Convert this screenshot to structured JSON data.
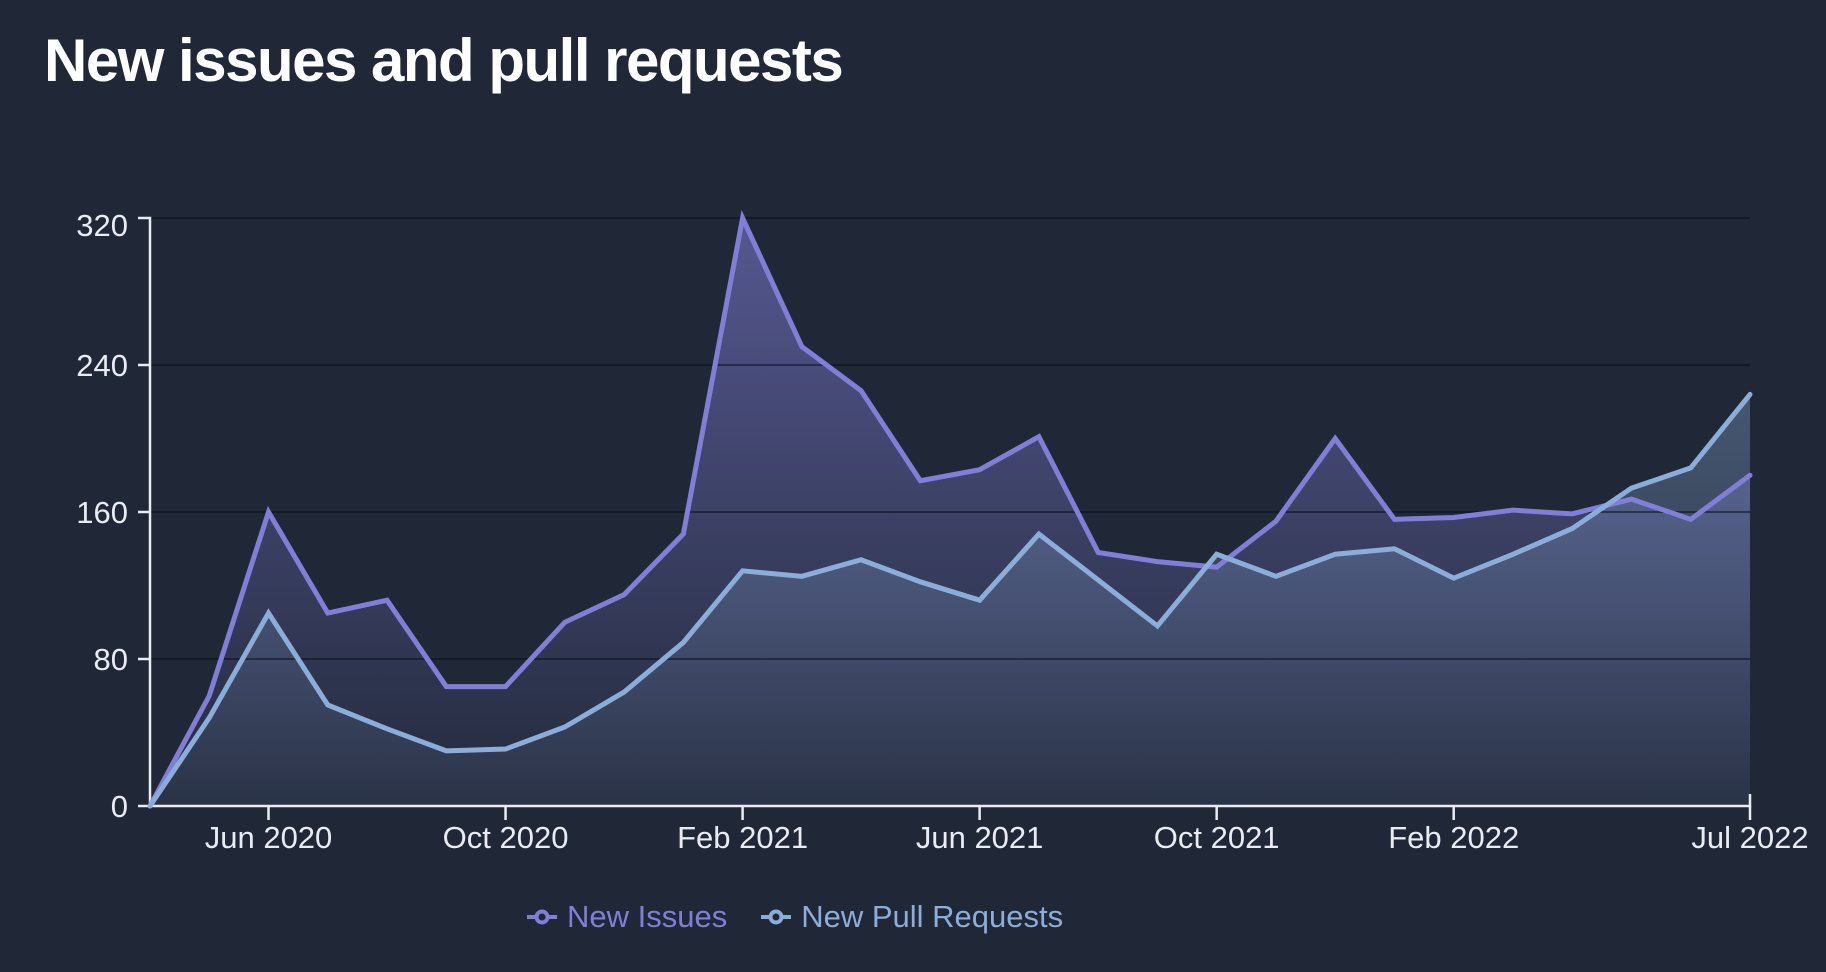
{
  "title": "New issues and pull requests",
  "legend": {
    "items": [
      "New Issues",
      "New Pull Requests"
    ]
  },
  "colors": {
    "background": "#202837",
    "axis": "#e9ecf3",
    "gridline": "rgba(10,16,28,0.55)",
    "new_issues": "#817ed8",
    "new_pull_requests": "#8badda"
  },
  "chart_data": {
    "type": "area",
    "title": "New issues and pull requests",
    "x": [
      "Apr 2020",
      "May 2020",
      "Jun 2020",
      "Jul 2020",
      "Aug 2020",
      "Sep 2020",
      "Oct 2020",
      "Nov 2020",
      "Dec 2020",
      "Jan 2021",
      "Feb 2021",
      "Mar 2021",
      "Apr 2021",
      "May 2021",
      "Jun 2021",
      "Jul 2021",
      "Aug 2021",
      "Sep 2021",
      "Oct 2021",
      "Nov 2021",
      "Dec 2021",
      "Jan 2022",
      "Feb 2022",
      "Mar 2022",
      "Apr 2022",
      "May 2022",
      "Jun 2022",
      "Jul 2022"
    ],
    "series": [
      {
        "name": "New Issues",
        "color": "#817ed8",
        "values": [
          0,
          60,
          160,
          105,
          112,
          65,
          65,
          100,
          115,
          148,
          320,
          250,
          226,
          177,
          183,
          201,
          138,
          133,
          130,
          155,
          200,
          156,
          157,
          161,
          159,
          167,
          156,
          180
        ]
      },
      {
        "name": "New Pull Requests",
        "color": "#8badda",
        "values": [
          0,
          48,
          105,
          55,
          42,
          30,
          31,
          43,
          62,
          89,
          128,
          125,
          134,
          122,
          112,
          148,
          123,
          98,
          137,
          125,
          137,
          140,
          124,
          137,
          151,
          173,
          184,
          224
        ]
      }
    ],
    "ylim": [
      0,
      320
    ],
    "yticks": [
      0,
      80,
      160,
      240,
      320
    ],
    "xticks": [
      {
        "index": 2,
        "label": "Jun 2020"
      },
      {
        "index": 6,
        "label": "Oct 2020"
      },
      {
        "index": 10,
        "label": "Feb 2021"
      },
      {
        "index": 14,
        "label": "Jun 2021"
      },
      {
        "index": 18,
        "label": "Oct 2021"
      },
      {
        "index": 22,
        "label": "Feb 2022"
      },
      {
        "index": 27,
        "label": "Jul 2022"
      }
    ],
    "grid": "horizontal",
    "legend_position": "bottom"
  }
}
